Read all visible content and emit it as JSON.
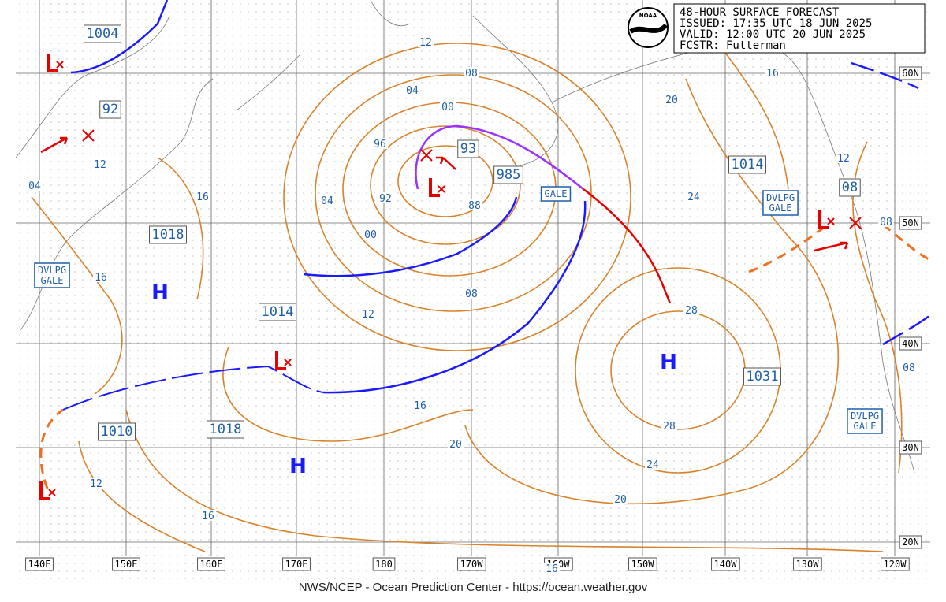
{
  "header": {
    "logo": "NOAA",
    "lines": [
      "48-HOUR SURFACE FORECAST",
      "ISSUED: 17:35 UTC 18 JUN 2025",
      "VALID: 12:00 UTC 20 JUN 2025",
      "FCSTR:  Futterman"
    ]
  },
  "longitudes": [
    "140E",
    "150E",
    "160E",
    "170E",
    "180",
    "170W",
    "160W",
    "150W",
    "140W",
    "130W",
    "120W"
  ],
  "latitudes": [
    "60N",
    "50N",
    "40N",
    "30N",
    "20N"
  ],
  "pressure_labels": [
    "1004",
    "92",
    "1018",
    "1014",
    "1010",
    "1018",
    "93",
    "985",
    "1014",
    "08",
    "1031"
  ],
  "warnings": [
    [
      "DVLPG",
      "GALE"
    ],
    [
      "GALE"
    ],
    [
      "DVLPG",
      "GALE"
    ],
    [
      "DVLPG",
      "GALE"
    ]
  ],
  "isobar_labels": [
    "12",
    "08",
    "04",
    "00",
    "96",
    "92",
    "88",
    "04",
    "00",
    "08",
    "12",
    "16",
    "16",
    "12",
    "04",
    "16",
    "20",
    "20",
    "16",
    "24",
    "28",
    "28",
    "24",
    "20",
    "16",
    "12",
    "12",
    "08",
    "08",
    "16"
  ],
  "highs": [
    "H",
    "H",
    "H"
  ],
  "footer": "NWS/NCEP - Ocean Prediction Center - https://ocean.weather.gov"
}
